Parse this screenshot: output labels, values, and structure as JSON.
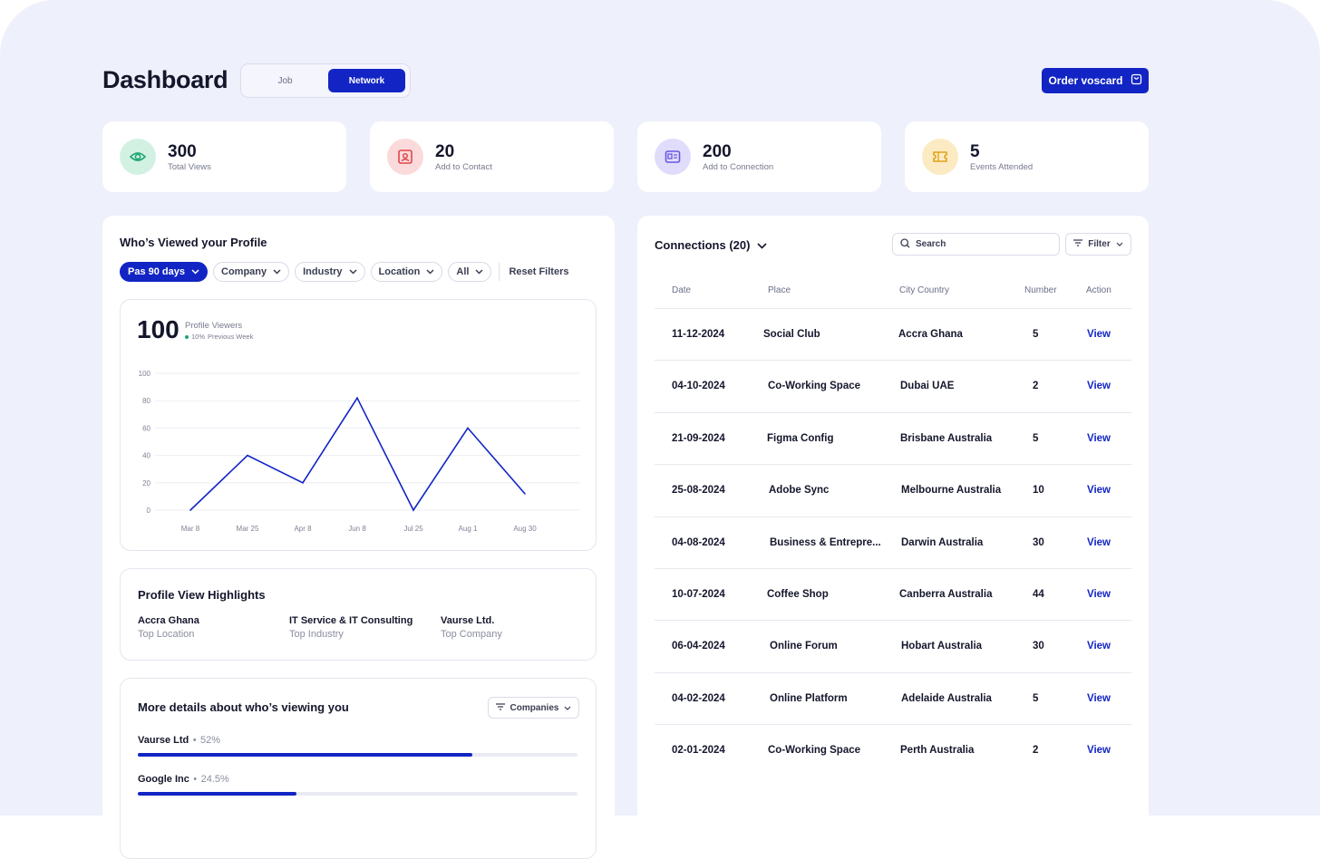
{
  "header": {
    "title": "Dashboard",
    "toggle": {
      "job": "Job",
      "network": "Network",
      "selected": "Network"
    },
    "order_button": "Order voscard"
  },
  "stats": [
    {
      "value": "300",
      "label": "Total Views",
      "icon": "eye-icon",
      "color": "#1ea672"
    },
    {
      "value": "20",
      "label": "Add to Contact",
      "icon": "contact-card-icon",
      "color": "#e0464c"
    },
    {
      "value": "200",
      "label": "Add to Connection",
      "icon": "id-card-icon",
      "color": "#6b55e0"
    },
    {
      "value": "5",
      "label": "Events Attended",
      "icon": "ticket-icon",
      "color": "#e1a11a"
    }
  ],
  "viewed": {
    "title": "Who’s Viewed your Profile",
    "filters": [
      "Pas 90 days",
      "Company",
      "Industry",
      "Location",
      "All"
    ],
    "reset": "Reset Filters",
    "big_number": "100",
    "big_label": "Profile Viewers",
    "change": "10%",
    "change_label": "Previous Week"
  },
  "chart_data": {
    "type": "line",
    "categories": [
      "Mar 8",
      "Mar 25",
      "Apr 8",
      "Jun 8",
      "Jul 25",
      "Aug 1",
      "Aug 30"
    ],
    "x_points": [
      "Mar 8",
      "Mar 25",
      "Apr 8",
      "Jun 8",
      "Jul 25",
      "Aug 1",
      "Aug 30"
    ],
    "values": [
      0,
      40,
      20,
      82,
      0,
      60,
      12
    ],
    "yticks": [
      100,
      80,
      60,
      40,
      20,
      0
    ],
    "ylim": [
      0,
      100
    ],
    "grid": true,
    "color": "#1225c4"
  },
  "highlights": {
    "title": "Profile View Highlights",
    "items": [
      {
        "value": "Accra Ghana",
        "label": "Top Location"
      },
      {
        "value": "IT Service & IT Consulting",
        "label": "Top Industry"
      },
      {
        "value": "Vaurse Ltd.",
        "label": "Top Company"
      }
    ]
  },
  "more_details": {
    "title": "More details about who’s viewing you",
    "dropdown": "Companies",
    "bars": [
      {
        "name": "Vaurse Ltd",
        "pct": "52%",
        "fraction": 0.76
      },
      {
        "name": "Google Inc",
        "pct": "24.5%",
        "fraction": 0.36
      }
    ]
  },
  "connections": {
    "title": "Connections (20)",
    "search_placeholder": "Search",
    "filter": "Filter",
    "columns": [
      "Date",
      "Place",
      "City Country",
      "Number",
      "Action"
    ],
    "rows": [
      {
        "date": "11-12-2024",
        "place": "Social Club",
        "city": "Accra Ghana",
        "number": "5",
        "action": "View"
      },
      {
        "date": "04-10-2024",
        "place": "Co-Working Space",
        "city": "Dubai UAE",
        "number": "2",
        "action": "View"
      },
      {
        "date": "21-09-2024",
        "place": "Figma Config",
        "city": "Brisbane Australia",
        "number": "5",
        "action": "View"
      },
      {
        "date": "25-08-2024",
        "place": "Adobe Sync",
        "city": "Melbourne Australia",
        "number": "10",
        "action": "View"
      },
      {
        "date": "04-08-2024",
        "place": "Business & Entrepre...",
        "city": "Darwin Australia",
        "number": "30",
        "action": "View"
      },
      {
        "date": "10-07-2024",
        "place": "Coffee Shop",
        "city": "Canberra Australia",
        "number": "44",
        "action": "View"
      },
      {
        "date": "06-04-2024",
        "place": "Online Forum",
        "city": "Hobart Australia",
        "number": "30",
        "action": "View"
      },
      {
        "date": "04-02-2024",
        "place": "Online Platform",
        "city": "Adelaide Australia",
        "number": "5",
        "action": "View"
      },
      {
        "date": "02-01-2024",
        "place": "Co-Working Space",
        "city": "Perth Australia",
        "number": "2",
        "action": "View"
      }
    ]
  }
}
